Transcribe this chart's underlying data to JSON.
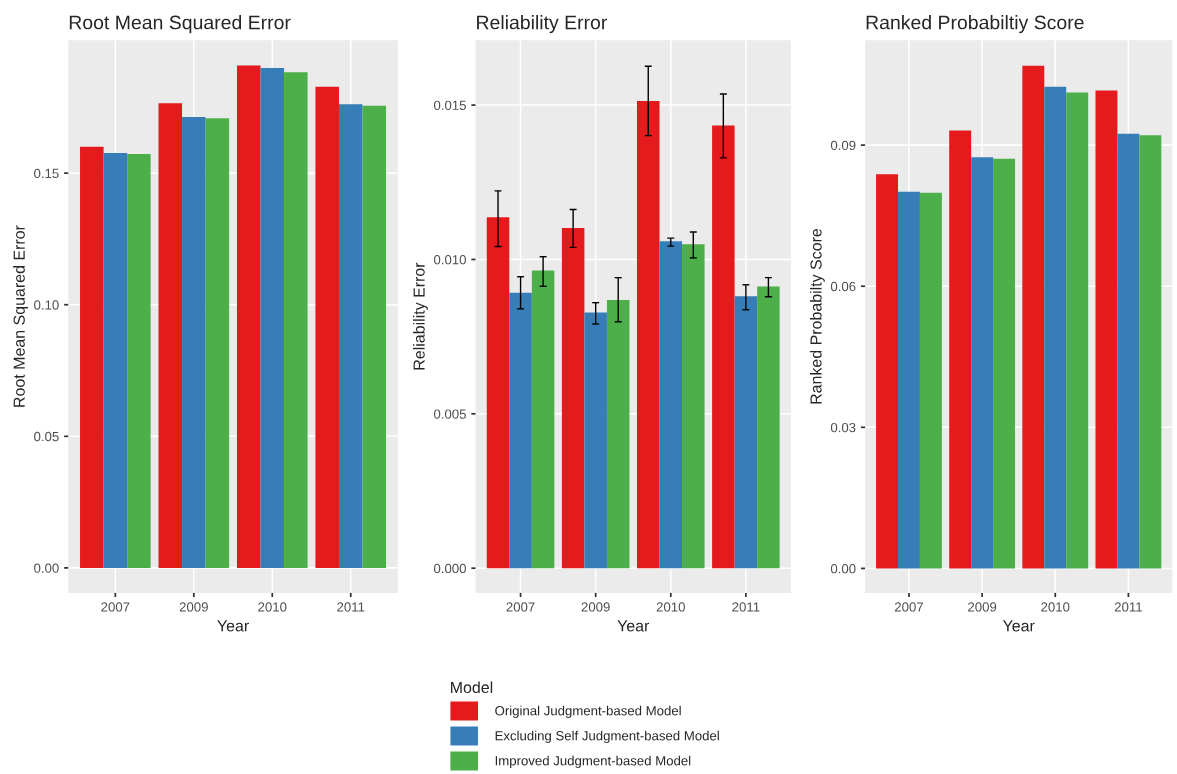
{
  "chart_data": [
    {
      "type": "bar",
      "title": "Root Mean Squared Error",
      "xlabel": "Year",
      "ylabel": "Root Mean Squared Error",
      "categories": [
        "2007",
        "2009",
        "2010",
        "2011"
      ],
      "ylim": [
        -0.0095,
        0.2005
      ],
      "yticks": [
        {
          "value": 0,
          "label": "0.00"
        },
        0.05,
        {
          "value": 0.1,
          "label": "0.10"
        },
        0.15
      ],
      "grid": true,
      "series": [
        {
          "color": "#e41a1c",
          "values": [
            0.16,
            0.1766,
            0.1909,
            0.1828
          ]
        },
        {
          "color": "#377eb8",
          "values": [
            0.1577,
            0.1713,
            0.19,
            0.1762
          ]
        },
        {
          "color": "#4daf4a",
          "values": [
            0.1573,
            0.1709,
            0.1883,
            0.1756
          ]
        }
      ]
    },
    {
      "type": "bar",
      "title": "Reliability Error",
      "xlabel": "Year",
      "ylabel": "Reliability Error",
      "categories": [
        "2007",
        "2009",
        "2010",
        "2011"
      ],
      "ylim": [
        -0.0008,
        0.0171
      ],
      "yticks": [
        {
          "value": 0,
          "label": "0.000"
        },
        0.005,
        {
          "value": 0.01,
          "label": "0.010"
        },
        0.015
      ],
      "grid": true,
      "legend": "bottom",
      "legend_title": "Model",
      "series": [
        {
          "name": "Original Judgment-based Model",
          "color": "#e41a1c",
          "values": [
            0.01137,
            0.01102,
            0.01513,
            0.01434
          ],
          "errors": [
            [
              0.01042,
              0.01222
            ],
            [
              0.01039,
              0.01162
            ],
            [
              0.01401,
              0.01626
            ],
            [
              0.01329,
              0.01536
            ]
          ]
        },
        {
          "name": "Excluding Self Judgment-based Model",
          "color": "#377eb8",
          "values": [
            0.00892,
            0.00828,
            0.01059,
            0.00881
          ],
          "errors": [
            [
              0.0084,
              0.00944
            ],
            [
              0.00791,
              0.0086
            ],
            [
              0.01043,
              0.01069
            ],
            [
              0.00837,
              0.00918
            ]
          ]
        },
        {
          "name": "Improved Judgment-based Model",
          "color": "#4daf4a",
          "values": [
            0.00964,
            0.00869,
            0.01049,
            0.00912
          ],
          "errors": [
            [
              0.00913,
              0.01009
            ],
            [
              0.00798,
              0.00941
            ],
            [
              0.01005,
              0.01089
            ],
            [
              0.00879,
              0.00941
            ]
          ]
        }
      ]
    },
    {
      "type": "bar",
      "title": "Ranked Probabiltiy Score",
      "xlabel": "Year",
      "ylabel": "Ranked Probabilty Score",
      "categories": [
        "2007",
        "2009",
        "2010",
        "2011"
      ],
      "ylim": [
        -0.0052,
        0.1123
      ],
      "yticks": [
        {
          "value": 0,
          "label": "0.00"
        },
        0.03,
        0.06,
        0.09
      ],
      "grid": true,
      "series": [
        {
          "color": "#e41a1c",
          "values": [
            0.0838,
            0.0931,
            0.1069,
            0.1016
          ]
        },
        {
          "color": "#377eb8",
          "values": [
            0.0801,
            0.0874,
            0.1024,
            0.0924
          ]
        },
        {
          "color": "#4daf4a",
          "values": [
            0.0799,
            0.0871,
            0.1012,
            0.0921
          ]
        }
      ]
    }
  ]
}
